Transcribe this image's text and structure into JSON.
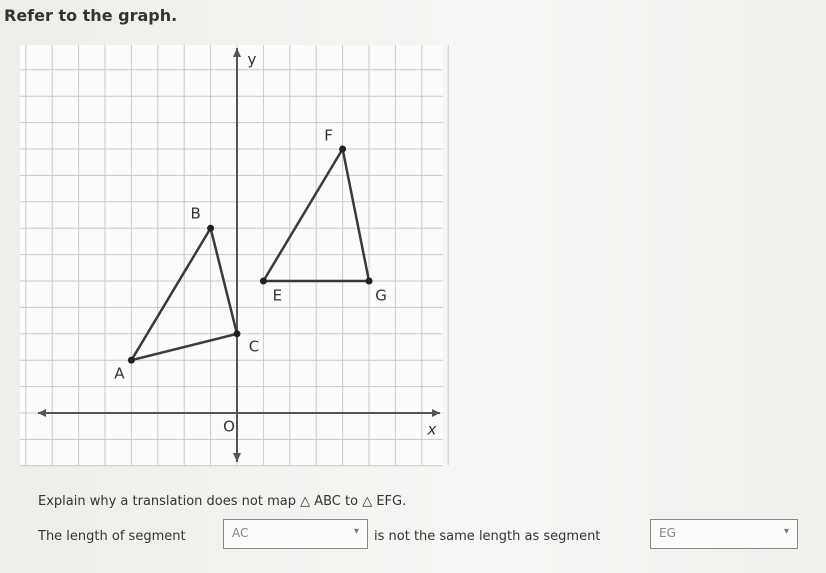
{
  "prompt": "Refer to the graph.",
  "graph": {
    "y_axis_label": "y",
    "x_axis_label": "x",
    "origin_label": "O",
    "points": [
      {
        "label": "A",
        "x": -4,
        "y": 2
      },
      {
        "label": "B",
        "x": -1,
        "y": 7
      },
      {
        "label": "C",
        "x": 0,
        "y": 3
      },
      {
        "label": "E",
        "x": 1,
        "y": 5
      },
      {
        "label": "F",
        "x": 4,
        "y": 10
      },
      {
        "label": "G",
        "x": 5,
        "y": 5
      }
    ]
  },
  "question": "Explain why a translation does not map △ ABC to △ EFG.",
  "answer": {
    "before": "The length of segment",
    "choice_1": "AC",
    "middle": "is not the same length as segment",
    "choice_2": "EG"
  }
}
